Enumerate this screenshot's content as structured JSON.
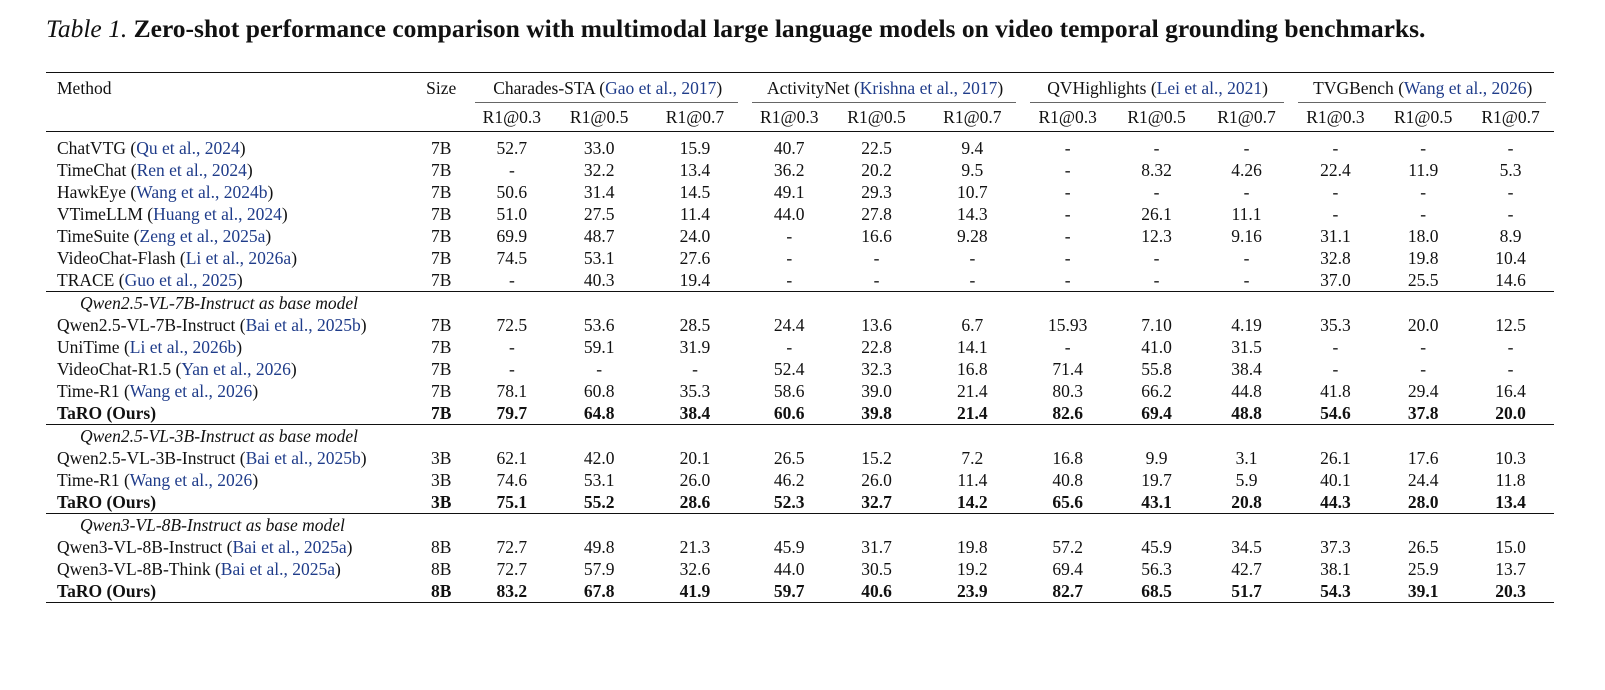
{
  "caption": {
    "label": "Table 1.",
    "text": "Zero-shot performance comparison with multimodal large language models on video temporal grounding benchmarks."
  },
  "header": {
    "method": "Method",
    "size": "Size",
    "benchmarks": [
      {
        "name": "Charades-STA",
        "cite": "Gao et al., 2017"
      },
      {
        "name": "ActivityNet",
        "cite": "Krishna et al., 2017"
      },
      {
        "name": "QVHighlights",
        "cite": "Lei et al., 2021"
      },
      {
        "name": "TVGBench",
        "cite": "Wang et al., 2026"
      }
    ],
    "metrics": [
      "R1@0.3",
      "R1@0.5",
      "R1@0.7"
    ]
  },
  "sections": [
    {
      "title": "",
      "rows": [
        {
          "name": "ChatVTG",
          "cite": "Qu et al., 2024",
          "size": "7B",
          "bold": false,
          "values": [
            "52.7",
            "33.0",
            "15.9",
            "40.7",
            "22.5",
            "9.4",
            "-",
            "-",
            "-",
            "-",
            "-",
            "-"
          ]
        },
        {
          "name": "TimeChat",
          "cite": "Ren et al., 2024",
          "size": "7B",
          "bold": false,
          "values": [
            "-",
            "32.2",
            "13.4",
            "36.2",
            "20.2",
            "9.5",
            "-",
            "8.32",
            "4.26",
            "22.4",
            "11.9",
            "5.3"
          ]
        },
        {
          "name": "HawkEye",
          "cite": "Wang et al., 2024b",
          "size": "7B",
          "bold": false,
          "values": [
            "50.6",
            "31.4",
            "14.5",
            "49.1",
            "29.3",
            "10.7",
            "-",
            "-",
            "-",
            "-",
            "-",
            "-"
          ]
        },
        {
          "name": "VTimeLLM",
          "cite": "Huang et al., 2024",
          "size": "7B",
          "bold": false,
          "values": [
            "51.0",
            "27.5",
            "11.4",
            "44.0",
            "27.8",
            "14.3",
            "-",
            "26.1",
            "11.1",
            "-",
            "-",
            "-"
          ]
        },
        {
          "name": "TimeSuite",
          "cite": "Zeng et al., 2025a",
          "size": "7B",
          "bold": false,
          "values": [
            "69.9",
            "48.7",
            "24.0",
            "-",
            "16.6",
            "9.28",
            "-",
            "12.3",
            "9.16",
            "31.1",
            "18.0",
            "8.9"
          ]
        },
        {
          "name": "VideoChat-Flash",
          "cite": "Li et al., 2026a",
          "size": "7B",
          "bold": false,
          "values": [
            "74.5",
            "53.1",
            "27.6",
            "-",
            "-",
            "-",
            "-",
            "-",
            "-",
            "32.8",
            "19.8",
            "10.4"
          ]
        },
        {
          "name": "TRACE",
          "cite": "Guo et al., 2025",
          "size": "7B",
          "bold": false,
          "values": [
            "-",
            "40.3",
            "19.4",
            "-",
            "-",
            "-",
            "-",
            "-",
            "-",
            "37.0",
            "25.5",
            "14.6"
          ]
        }
      ]
    },
    {
      "title": "Qwen2.5-VL-7B-Instruct as base model",
      "rows": [
        {
          "name": "Qwen2.5-VL-7B-Instruct",
          "cite": "Bai et al., 2025b",
          "size": "7B",
          "bold": false,
          "values": [
            "72.5",
            "53.6",
            "28.5",
            "24.4",
            "13.6",
            "6.7",
            "15.93",
            "7.10",
            "4.19",
            "35.3",
            "20.0",
            "12.5"
          ]
        },
        {
          "name": "UniTime",
          "cite": "Li et al., 2026b",
          "size": "7B",
          "bold": false,
          "values": [
            "-",
            "59.1",
            "31.9",
            "-",
            "22.8",
            "14.1",
            "-",
            "41.0",
            "31.5",
            "-",
            "-",
            "-"
          ]
        },
        {
          "name": "VideoChat-R1.5",
          "cite": "Yan et al., 2026",
          "size": "7B",
          "bold": false,
          "values": [
            "-",
            "-",
            "-",
            "52.4",
            "32.3",
            "16.8",
            "71.4",
            "55.8",
            "38.4",
            "-",
            "-",
            "-"
          ]
        },
        {
          "name": "Time-R1",
          "cite": "Wang et al., 2026",
          "size": "7B",
          "bold": false,
          "values": [
            "78.1",
            "60.8",
            "35.3",
            "58.6",
            "39.0",
            "21.4",
            "80.3",
            "66.2",
            "44.8",
            "41.8",
            "29.4",
            "16.4"
          ]
        },
        {
          "name": "TaRO (Ours)",
          "cite": "",
          "size": "7B",
          "bold": true,
          "values": [
            "79.7",
            "64.8",
            "38.4",
            "60.6",
            "39.8",
            "21.4",
            "82.6",
            "69.4",
            "48.8",
            "54.6",
            "37.8",
            "20.0"
          ]
        }
      ]
    },
    {
      "title": "Qwen2.5-VL-3B-Instruct as base model",
      "rows": [
        {
          "name": "Qwen2.5-VL-3B-Instruct",
          "cite": "Bai et al., 2025b",
          "size": "3B",
          "bold": false,
          "values": [
            "62.1",
            "42.0",
            "20.1",
            "26.5",
            "15.2",
            "7.2",
            "16.8",
            "9.9",
            "3.1",
            "26.1",
            "17.6",
            "10.3"
          ]
        },
        {
          "name": "Time-R1",
          "cite": "Wang et al., 2026",
          "size": "3B",
          "bold": false,
          "values": [
            "74.6",
            "53.1",
            "26.0",
            "46.2",
            "26.0",
            "11.4",
            "40.8",
            "19.7",
            "5.9",
            "40.1",
            "24.4",
            "11.8"
          ]
        },
        {
          "name": "TaRO (Ours)",
          "cite": "",
          "size": "3B",
          "bold": true,
          "values": [
            "75.1",
            "55.2",
            "28.6",
            "52.3",
            "32.7",
            "14.2",
            "65.6",
            "43.1",
            "20.8",
            "44.3",
            "28.0",
            "13.4"
          ]
        }
      ]
    },
    {
      "title": "Qwen3-VL-8B-Instruct as base model",
      "rows": [
        {
          "name": "Qwen3-VL-8B-Instruct",
          "cite": "Bai et al., 2025a",
          "size": "8B",
          "bold": false,
          "values": [
            "72.7",
            "49.8",
            "21.3",
            "45.9",
            "31.7",
            "19.8",
            "57.2",
            "45.9",
            "34.5",
            "37.3",
            "26.5",
            "15.0"
          ]
        },
        {
          "name": "Qwen3-VL-8B-Think",
          "cite": "Bai et al., 2025a",
          "size": "8B",
          "bold": false,
          "values": [
            "72.7",
            "57.9",
            "32.6",
            "44.0",
            "30.5",
            "19.2",
            "69.4",
            "56.3",
            "42.7",
            "38.1",
            "25.9",
            "13.7"
          ]
        },
        {
          "name": "TaRO (Ours)",
          "cite": "",
          "size": "8B",
          "bold": true,
          "values": [
            "83.2",
            "67.8",
            "41.9",
            "59.7",
            "40.6",
            "23.9",
            "82.7",
            "68.5",
            "51.7",
            "54.3",
            "39.1",
            "20.3"
          ]
        }
      ]
    }
  ]
}
